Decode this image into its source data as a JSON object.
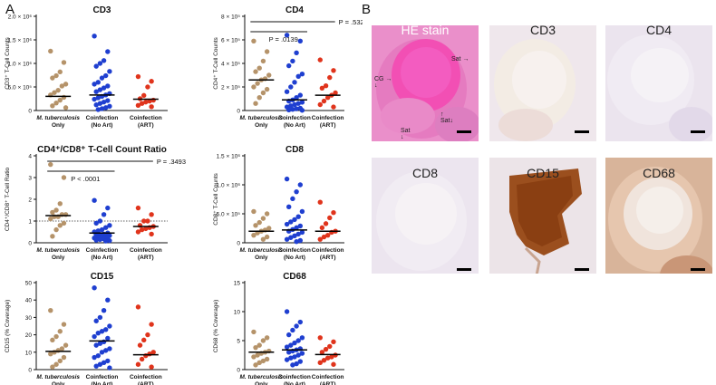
{
  "panels": {
    "a": "A",
    "b": "B"
  },
  "groups": [
    {
      "line1": "M. tuberculosis",
      "line2": "Only",
      "color": "#b5936a"
    },
    {
      "line1": "Coinfection",
      "line2": "(No Art)",
      "color": "#1f3fd0"
    },
    {
      "line1": "Coinfection",
      "line2": "(ART)",
      "color": "#e0341c"
    }
  ],
  "chart_data": [
    {
      "type": "scatter",
      "id": "cd3",
      "title": "CD3",
      "ylabel": "CD3⁺ T-Cell Counts",
      "ylim": [
        0,
        2000000
      ],
      "yticks": [
        0,
        500000,
        1000000,
        1500000,
        2000000
      ],
      "ytick_labels": [
        "0",
        "5.0 × 10⁵",
        "1.0 × 10⁶",
        "1.5 × 10⁶",
        "2.0 × 10⁶"
      ],
      "categories": [
        "M. tuberculosis Only",
        "Coinfection (No Art)",
        "Coinfection (ART)"
      ],
      "series": [
        {
          "values": [
            1260000,
            1020000,
            820000,
            740000,
            690000,
            560000,
            520000,
            430000,
            380000,
            330000,
            280000,
            220000,
            160000,
            100000,
            60000
          ]
        },
        {
          "values": [
            1580000,
            1250000,
            1060000,
            1000000,
            940000,
            830000,
            740000,
            690000,
            600000,
            560000,
            520000,
            480000,
            440000,
            400000,
            360000,
            330000,
            300000,
            270000,
            240000,
            210000,
            180000,
            150000,
            120000,
            90000,
            60000,
            40000,
            20000
          ]
        },
        {
          "values": [
            720000,
            620000,
            500000,
            320000,
            250000,
            220000,
            200000,
            180000,
            150000,
            110000,
            80000
          ]
        }
      ],
      "medians": [
        300000,
        330000,
        240000
      ]
    },
    {
      "type": "scatter",
      "id": "cd4",
      "title": "CD4",
      "ylabel": "CD4⁺ T-Cell Counts",
      "ylim": [
        0,
        800000
      ],
      "yticks": [
        0,
        200000,
        400000,
        600000,
        800000
      ],
      "ytick_labels": [
        "0",
        "2 × 10⁵",
        "4 × 10⁵",
        "6 × 10⁵",
        "8 × 10⁵"
      ],
      "categories": [
        "M. tuberculosis Only",
        "Coinfection (No Art)",
        "Coinfection (ART)"
      ],
      "series": [
        {
          "values": [
            590000,
            500000,
            420000,
            360000,
            330000,
            300000,
            270000,
            260000,
            230000,
            200000,
            180000,
            150000,
            110000,
            60000
          ]
        },
        {
          "values": [
            640000,
            590000,
            490000,
            420000,
            380000,
            310000,
            290000,
            240000,
            200000,
            160000,
            130000,
            110000,
            90000,
            80000,
            70000,
            60000,
            50000,
            40000,
            30000,
            20000,
            15000,
            10000,
            5000,
            2000
          ]
        },
        {
          "values": [
            430000,
            340000,
            280000,
            210000,
            190000,
            150000,
            130000,
            110000,
            80000,
            50000,
            30000
          ]
        }
      ],
      "medians": [
        260000,
        90000,
        130000
      ],
      "annotations": [
        "P = .0139",
        "P = .5327"
      ]
    },
    {
      "type": "scatter",
      "id": "ratio",
      "title": "CD4⁺/CD8⁺ T-Cell Count Ratio",
      "ylabel": "CD4⁺/CD8⁺ T-Cell Ratio",
      "ylim": [
        0,
        4
      ],
      "yticks": [
        0,
        1,
        2,
        3,
        4
      ],
      "ytick_labels": [
        "0",
        "1",
        "2",
        "3",
        "4"
      ],
      "categories": [
        "M. tuberculosis Only",
        "Coinfection (No Art)",
        "Coinfection (ART)"
      ],
      "series": [
        {
          "values": [
            3.6,
            3.0,
            1.8,
            1.5,
            1.4,
            1.3,
            1.3,
            1.2,
            1.2,
            1.1,
            0.9,
            0.8,
            0.6,
            0.3
          ]
        },
        {
          "values": [
            1.95,
            1.6,
            1.3,
            1.0,
            0.9,
            0.8,
            0.7,
            0.6,
            0.55,
            0.5,
            0.45,
            0.4,
            0.38,
            0.35,
            0.33,
            0.3,
            0.28,
            0.25,
            0.22,
            0.2,
            0.18,
            0.15,
            0.12,
            0.1,
            0.08
          ]
        },
        {
          "values": [
            1.6,
            1.3,
            1.0,
            1.0,
            0.8,
            0.75,
            0.7,
            0.65,
            0.6,
            0.5,
            0.4
          ]
        }
      ],
      "medians": [
        1.25,
        0.45,
        0.75
      ],
      "reference_line": 1,
      "annotations": [
        "P < .0001",
        "P = .3493"
      ]
    },
    {
      "type": "scatter",
      "id": "cd8",
      "title": "CD8",
      "ylabel": "CD8⁺ T-Cell Counts",
      "ylim": [
        0,
        1500000
      ],
      "yticks": [
        0,
        500000,
        1000000,
        1500000
      ],
      "ytick_labels": [
        "0",
        "5.0 × 10⁵",
        "1.0 × 10⁶",
        "1.5 × 10⁶"
      ],
      "categories": [
        "M. tuberculosis Only",
        "Coinfection (No Art)",
        "Coinfection (ART)"
      ],
      "series": [
        {
          "values": [
            540000,
            500000,
            420000,
            350000,
            300000,
            250000,
            220000,
            200000,
            170000,
            130000,
            100000,
            60000
          ]
        },
        {
          "values": [
            1100000,
            1000000,
            880000,
            760000,
            620000,
            540000,
            450000,
            400000,
            360000,
            320000,
            290000,
            260000,
            230000,
            200000,
            180000,
            150000,
            120000,
            90000,
            60000,
            40000,
            20000
          ]
        },
        {
          "values": [
            700000,
            520000,
            430000,
            330000,
            260000,
            200000,
            180000,
            130000,
            100000,
            60000
          ]
        }
      ],
      "medians": [
        200000,
        220000,
        200000
      ]
    },
    {
      "type": "scatter",
      "id": "cd15",
      "title": "CD15",
      "ylabel": "CD15 (% Coverage)",
      "ylim": [
        0,
        50
      ],
      "yticks": [
        0,
        10,
        20,
        30,
        40,
        50
      ],
      "ytick_labels": [
        "0",
        "10",
        "20",
        "30",
        "40",
        "50"
      ],
      "categories": [
        "M. tuberculosis Only",
        "Coinfection (No Art)",
        "Coinfection (ART)"
      ],
      "series": [
        {
          "values": [
            34,
            26,
            22,
            19,
            17,
            14,
            12,
            11,
            10,
            9,
            7,
            5,
            3,
            1.5
          ]
        },
        {
          "values": [
            47,
            40,
            34,
            30,
            28,
            25,
            23,
            22,
            21,
            19,
            18,
            16,
            15,
            14,
            12,
            11,
            10,
            8,
            7,
            5,
            4,
            3,
            2,
            1
          ]
        },
        {
          "values": [
            36,
            26,
            20,
            17,
            14,
            10,
            9,
            8,
            6,
            3,
            1.5
          ]
        }
      ],
      "medians": [
        10.5,
        16.5,
        8.5
      ]
    },
    {
      "type": "scatter",
      "id": "cd68",
      "title": "CD68",
      "ylabel": "CD68 (% Coverage)",
      "ylim": [
        0,
        15
      ],
      "yticks": [
        0,
        5,
        10,
        15
      ],
      "ytick_labels": [
        "0",
        "5",
        "10",
        "15"
      ],
      "categories": [
        "M. tuberculosis Only",
        "Coinfection (No Art)",
        "Coinfection (ART)"
      ],
      "series": [
        {
          "values": [
            6.5,
            5.5,
            5.0,
            4.2,
            3.8,
            3.2,
            3.0,
            2.8,
            2.5,
            2.2,
            1.8,
            1.5,
            1.2,
            0.8
          ]
        },
        {
          "values": [
            10,
            8.2,
            7.5,
            6.8,
            6.0,
            5.5,
            5.0,
            4.6,
            4.2,
            3.9,
            3.6,
            3.4,
            3.2,
            3.0,
            2.8,
            2.5,
            2.2,
            2.0,
            1.7,
            1.4,
            1.0,
            0.8
          ]
        },
        {
          "values": [
            5.5,
            4.8,
            4.0,
            3.5,
            3.0,
            2.5,
            2.2,
            2.0,
            1.6,
            1.2,
            0.9
          ]
        }
      ],
      "medians": [
        3.0,
        3.4,
        2.6
      ]
    }
  ],
  "micrographs": [
    {
      "id": "he",
      "label": "HE stain",
      "annotations": [
        "Sat",
        "CG",
        "Sat",
        "Sat"
      ]
    },
    {
      "id": "cd3",
      "label": "CD3"
    },
    {
      "id": "cd4",
      "label": "CD4"
    },
    {
      "id": "cd8",
      "label": "CD8"
    },
    {
      "id": "cd15",
      "label": "CD15"
    },
    {
      "id": "cd68",
      "label": "CD68"
    }
  ]
}
